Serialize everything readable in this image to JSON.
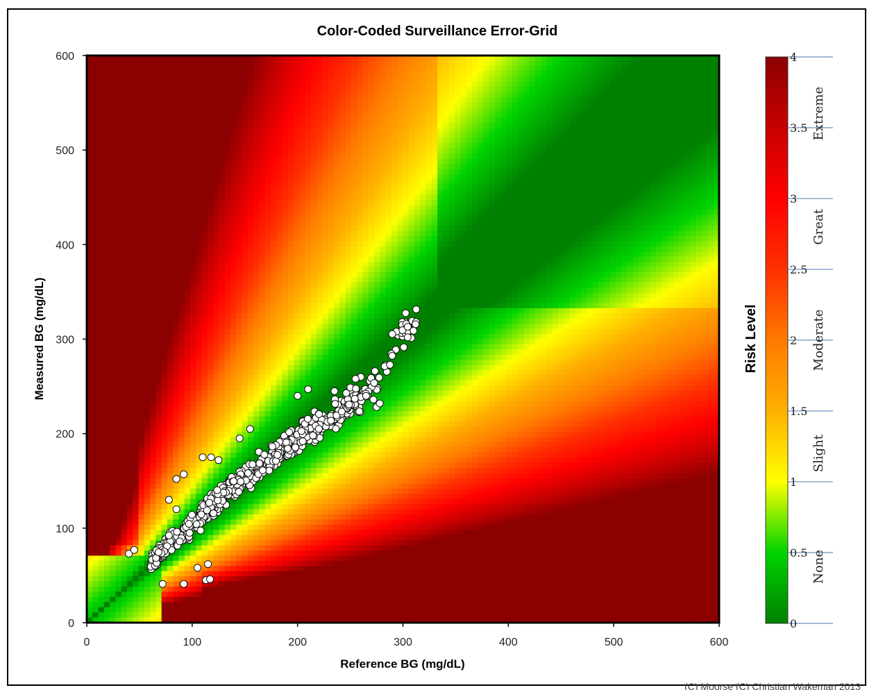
{
  "chart_data": {
    "type": "heatmap",
    "title": "Color-Coded Surveillance Error-Grid",
    "xlabel": "Reference BG (mg/dL)",
    "ylabel": "Measured BG (mg/dL)",
    "xlim": [
      0,
      600
    ],
    "ylim": [
      0,
      600
    ],
    "xticks": [
      "0",
      "100",
      "200",
      "300",
      "400",
      "500",
      "600"
    ],
    "yticks": [
      "0",
      "100",
      "200",
      "300",
      "400",
      "500",
      "600"
    ],
    "colorbar": {
      "label": "Risk Level",
      "range": [
        0,
        4
      ],
      "ticks": [
        "0",
        "0.5",
        "1",
        "1.5",
        "2",
        "2.5",
        "3",
        "3.5",
        "4"
      ],
      "bands": [
        "None",
        "Slight",
        "Moderate",
        "Great",
        "Extreme"
      ],
      "colors": [
        "#008000",
        "#00d000",
        "#ffff00",
        "#ff8c00",
        "#ff0000",
        "#8b0000"
      ]
    },
    "scatter_trend": [
      [
        40,
        50
      ],
      [
        60,
        62
      ],
      [
        80,
        85
      ],
      [
        100,
        103
      ],
      [
        120,
        125
      ],
      [
        140,
        145
      ],
      [
        160,
        160
      ],
      [
        180,
        180
      ],
      [
        200,
        195
      ],
      [
        220,
        210
      ],
      [
        240,
        225
      ],
      [
        260,
        240
      ],
      [
        280,
        265
      ],
      [
        295,
        300
      ],
      [
        310,
        318
      ]
    ],
    "scatter_outliers": [
      [
        92,
        41
      ],
      [
        72,
        41
      ],
      [
        113,
        45
      ],
      [
        117,
        46
      ],
      [
        105,
        58
      ],
      [
        115,
        62
      ],
      [
        110,
        175
      ],
      [
        118,
        175
      ],
      [
        125,
        172
      ],
      [
        85,
        152
      ],
      [
        92,
        157
      ],
      [
        78,
        130
      ],
      [
        275,
        228
      ],
      [
        278,
        232
      ],
      [
        272,
        236
      ],
      [
        260,
        260
      ],
      [
        265,
        240
      ],
      [
        40,
        73
      ],
      [
        45,
        77
      ],
      [
        85,
        120
      ],
      [
        145,
        195
      ],
      [
        155,
        205
      ],
      [
        200,
        240
      ],
      [
        210,
        247
      ],
      [
        235,
        245
      ],
      [
        255,
        258
      ]
    ],
    "watermark": "(C) Moorse (C) Christian Wakeman 2013"
  }
}
